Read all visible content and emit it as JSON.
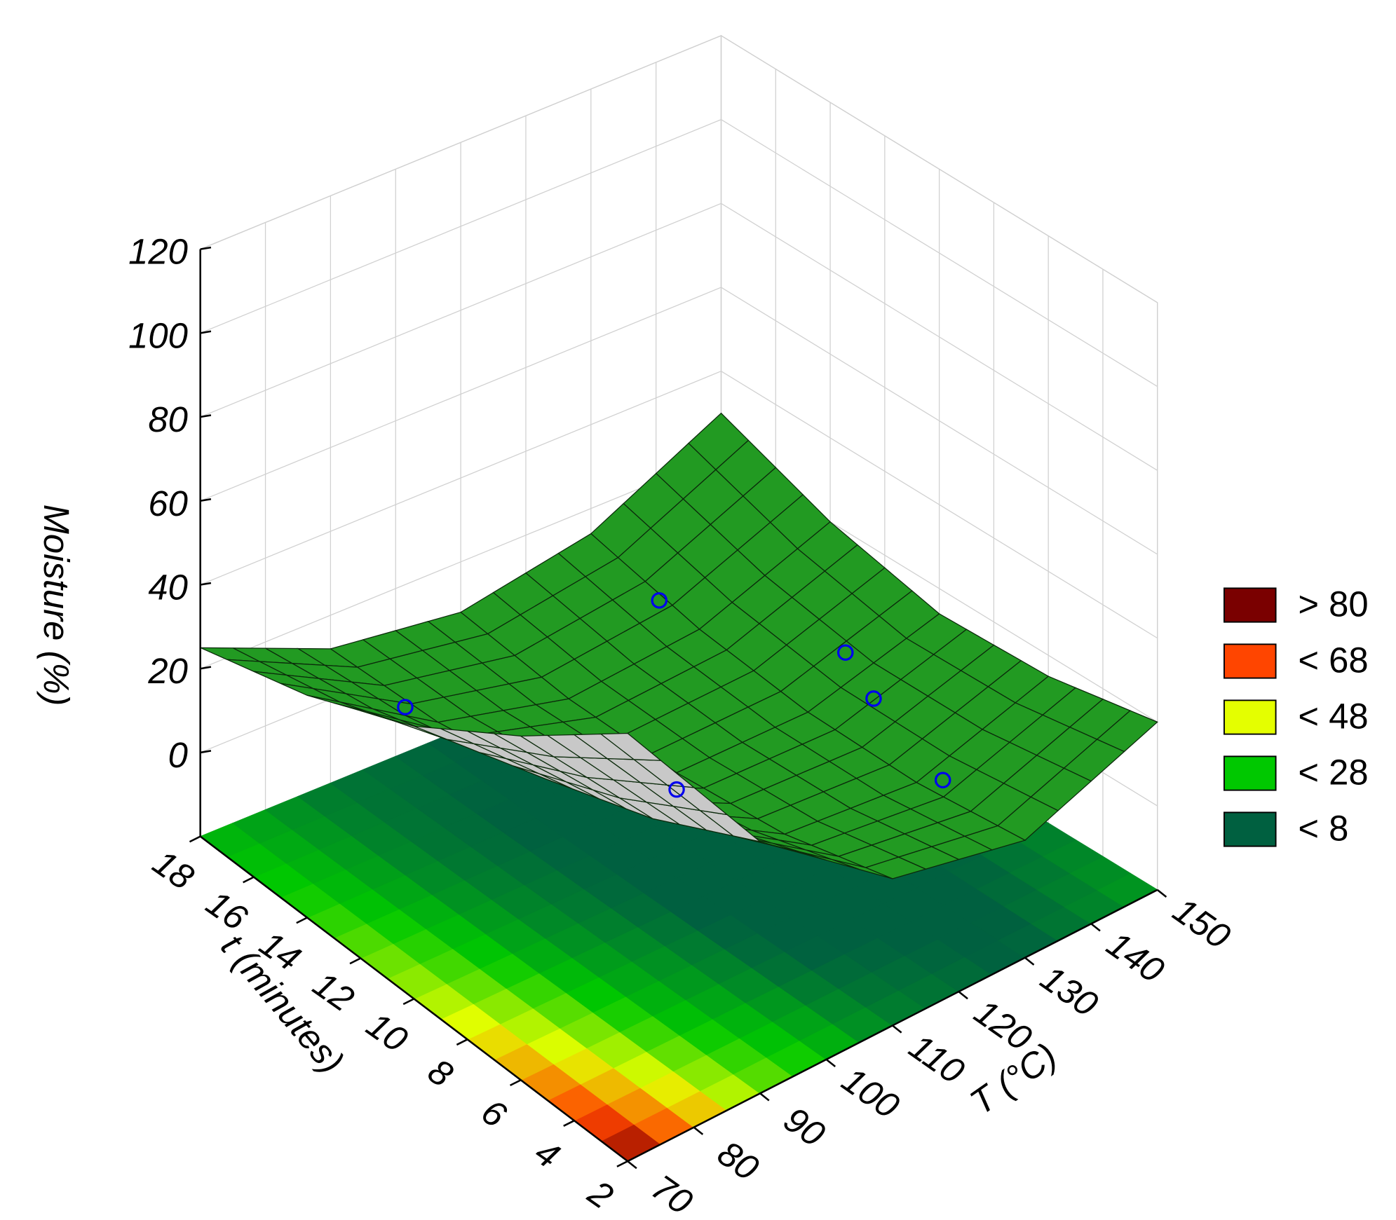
{
  "chart_data": {
    "type": "surface3d",
    "z_label": "Moisture (%)",
    "x_label": "T (°C)",
    "y_label": "t (minutes)",
    "x": [
      70,
      90,
      110,
      130,
      150
    ],
    "y": [
      2,
      6,
      10,
      14,
      18
    ],
    "z": [
      [
        82,
        40,
        15,
        8,
        20
      ],
      [
        62,
        27,
        8,
        5,
        15
      ],
      [
        45,
        18,
        5,
        5,
        14
      ],
      [
        33,
        13,
        5,
        8,
        20
      ],
      [
        25,
        12,
        8,
        14,
        30
      ]
    ],
    "xlim": [
      70,
      150
    ],
    "xticks": [
      70,
      80,
      90,
      100,
      110,
      120,
      130,
      140,
      150
    ],
    "ylim": [
      2,
      18
    ],
    "yticks": [
      2,
      4,
      6,
      8,
      10,
      12,
      14,
      16,
      18
    ],
    "zlim": [
      -20,
      120
    ],
    "zticks": [
      0,
      20,
      40,
      60,
      80,
      100,
      120
    ],
    "grid": true,
    "surface_color": "#229a22",
    "underside_color": "#c8c8c8",
    "points": {
      "x": [
        85,
        128,
        144,
        140,
        134,
        110
      ],
      "y": [
        14,
        15,
        12,
        10,
        6,
        10
      ],
      "z": [
        20,
        12,
        1,
        1,
        2.5,
        1
      ],
      "color": "#0000ee"
    },
    "legend": [
      {
        "label": "> 80",
        "value": 80,
        "color": "#7a0000"
      },
      {
        "label": "< 68",
        "value": 68,
        "color": "#ff4500"
      },
      {
        "label": "< 48",
        "value": 48,
        "color": "#e4ff00"
      },
      {
        "label": "< 28",
        "value": 28,
        "color": "#00c800"
      },
      {
        "label": "< 8",
        "value": 8,
        "color": "#006040"
      }
    ]
  }
}
